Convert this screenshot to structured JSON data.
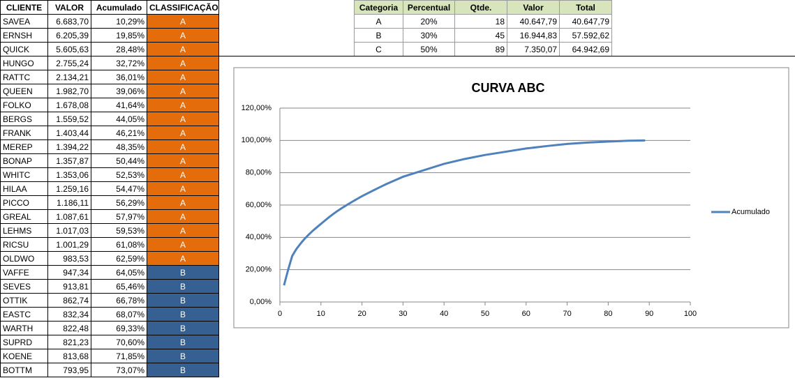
{
  "clients_table": {
    "header": [
      "CLIENTE",
      "VALOR",
      "Acumulado",
      "CLASSIFICAÇÃO"
    ],
    "rows": [
      [
        "SAVEA",
        "6.683,70",
        "10,29%",
        "A"
      ],
      [
        "ERNSH",
        "6.205,39",
        "19,85%",
        "A"
      ],
      [
        "QUICK",
        "5.605,63",
        "28,48%",
        "A"
      ],
      [
        "HUNGO",
        "2.755,24",
        "32,72%",
        "A"
      ],
      [
        "RATTC",
        "2.134,21",
        "36,01%",
        "A"
      ],
      [
        "QUEEN",
        "1.982,70",
        "39,06%",
        "A"
      ],
      [
        "FOLKO",
        "1.678,08",
        "41,64%",
        "A"
      ],
      [
        "BERGS",
        "1.559,52",
        "44,05%",
        "A"
      ],
      [
        "FRANK",
        "1.403,44",
        "46,21%",
        "A"
      ],
      [
        "MEREP",
        "1.394,22",
        "48,35%",
        "A"
      ],
      [
        "BONAP",
        "1.357,87",
        "50,44%",
        "A"
      ],
      [
        "WHITC",
        "1.353,06",
        "52,53%",
        "A"
      ],
      [
        "HILAA",
        "1.259,16",
        "54,47%",
        "A"
      ],
      [
        "PICCO",
        "1.186,11",
        "56,29%",
        "A"
      ],
      [
        "GREAL",
        "1.087,61",
        "57,97%",
        "A"
      ],
      [
        "LEHMS",
        "1.017,03",
        "59,53%",
        "A"
      ],
      [
        "RICSU",
        "1.001,29",
        "61,08%",
        "A"
      ],
      [
        "OLDWO",
        "983,53",
        "62,59%",
        "A"
      ],
      [
        "VAFFE",
        "947,34",
        "64,05%",
        "B"
      ],
      [
        "SEVES",
        "913,81",
        "65,46%",
        "B"
      ],
      [
        "OTTIK",
        "862,74",
        "66,78%",
        "B"
      ],
      [
        "EASTC",
        "832,34",
        "68,07%",
        "B"
      ],
      [
        "WARTH",
        "822,48",
        "69,33%",
        "B"
      ],
      [
        "SUPRD",
        "821,23",
        "70,60%",
        "B"
      ],
      [
        "KOENE",
        "813,68",
        "71,85%",
        "B"
      ],
      [
        "BOTTM",
        "793,95",
        "73,07%",
        "B"
      ]
    ],
    "class_colors": {
      "A": "#e46c0a",
      "B": "#366092"
    }
  },
  "summary_table": {
    "header": [
      "Categoria",
      "Percentual",
      "Qtde.",
      "Valor",
      "Total"
    ],
    "rows": [
      [
        "A",
        "20%",
        "18",
        "40.647,79",
        "40.647,79"
      ],
      [
        "B",
        "30%",
        "45",
        "16.944,83",
        "57.592,62"
      ],
      [
        "C",
        "50%",
        "89",
        "7.350,07",
        "64.942,69"
      ]
    ]
  },
  "chart_data": {
    "type": "line",
    "title": "CURVA ABC",
    "x": [
      1,
      2,
      3,
      4,
      5,
      6,
      7,
      8,
      9,
      10,
      11,
      12,
      13,
      14,
      15,
      16,
      17,
      18,
      19,
      20,
      21,
      22,
      23,
      24,
      25,
      26,
      30,
      35,
      40,
      45,
      50,
      55,
      60,
      65,
      70,
      75,
      80,
      85,
      89
    ],
    "series": [
      {
        "name": "Acumulado",
        "color": "#4f81bd",
        "values": [
          10.29,
          19.85,
          28.48,
          32.72,
          36.01,
          39.06,
          41.64,
          44.05,
          46.21,
          48.35,
          50.44,
          52.53,
          54.47,
          56.29,
          57.97,
          59.53,
          61.08,
          62.59,
          64.05,
          65.46,
          66.78,
          68.07,
          69.33,
          70.6,
          71.85,
          73.07,
          77.5,
          81.5,
          85.5,
          88.5,
          91,
          93,
          95,
          96.5,
          97.8,
          98.7,
          99.3,
          99.8,
          100
        ]
      }
    ],
    "xlim": [
      0,
      100
    ],
    "xticks": [
      0,
      10,
      20,
      30,
      40,
      50,
      60,
      70,
      80,
      90,
      100
    ],
    "ylim": [
      0,
      120
    ],
    "yticks": [
      {
        "value": 0,
        "label": "0,00%"
      },
      {
        "value": 20,
        "label": "20,00%"
      },
      {
        "value": 40,
        "label": "40,00%"
      },
      {
        "value": 60,
        "label": "60,00%"
      },
      {
        "value": 80,
        "label": "80,00%"
      },
      {
        "value": 100,
        "label": "100,00%"
      },
      {
        "value": 120,
        "label": "120,00%"
      }
    ],
    "grid": true,
    "legend": "right"
  }
}
